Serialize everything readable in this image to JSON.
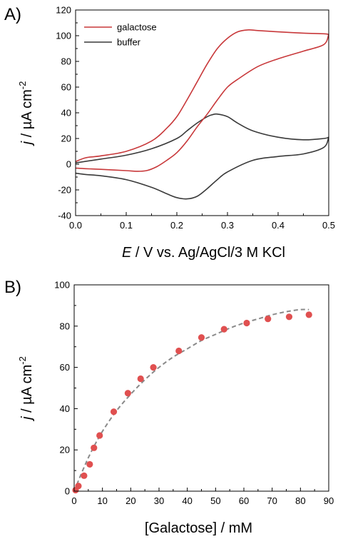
{
  "chart_data": [
    {
      "panel_label": "A)",
      "type": "line",
      "xlabel_italic": "E",
      "xlabel_rest": " / V vs. Ag/AgCl/3 M KCl",
      "ylabel_italic": "j",
      "ylabel_rest": " / µA cm",
      "ylabel_exp": "-2",
      "xlim": [
        0.0,
        0.5
      ],
      "ylim": [
        -40,
        120
      ],
      "xticks": [
        0.0,
        0.1,
        0.2,
        0.3,
        0.4,
        0.5
      ],
      "yticks": [
        -40,
        -20,
        0,
        20,
        40,
        60,
        80,
        100,
        120
      ],
      "legend_position": "top-left",
      "series": [
        {
          "name": "galactose",
          "color": "#c8383a",
          "forward": {
            "x": [
              0.0,
              0.02,
              0.05,
              0.1,
              0.15,
              0.18,
              0.2,
              0.22,
              0.24,
              0.26,
              0.28,
              0.3,
              0.32,
              0.34,
              0.36,
              0.4,
              0.45,
              0.49,
              0.5
            ],
            "y": [
              2,
              5,
              6.5,
              10,
              18,
              28,
              37,
              50,
              64,
              78,
              90,
              98,
              103,
              104.5,
              104,
              103,
              102,
              101.5,
              101
            ]
          },
          "reverse": {
            "x": [
              0.5,
              0.49,
              0.45,
              0.4,
              0.36,
              0.32,
              0.3,
              0.28,
              0.26,
              0.24,
              0.22,
              0.2,
              0.18,
              0.16,
              0.14,
              0.12,
              0.1,
              0.05,
              0.02,
              0.0
            ],
            "y": [
              101,
              93,
              88,
              82,
              76,
              66,
              60,
              50,
              39,
              29,
              18,
              9,
              3,
              -2,
              -5,
              -5.5,
              -5,
              -4,
              -3.5,
              -3
            ]
          }
        },
        {
          "name": "buffer",
          "color": "#3a3a3a",
          "forward": {
            "x": [
              0.0,
              0.05,
              0.1,
              0.15,
              0.2,
              0.22,
              0.24,
              0.26,
              0.27,
              0.28,
              0.3,
              0.32,
              0.35,
              0.4,
              0.45,
              0.49,
              0.5
            ],
            "y": [
              1,
              4,
              7,
              12,
              20,
              26,
              32,
              37,
              38.5,
              39,
              37,
              32,
              26,
              21,
              19,
              20,
              21
            ]
          },
          "reverse": {
            "x": [
              0.5,
              0.49,
              0.45,
              0.4,
              0.35,
              0.3,
              0.28,
              0.26,
              0.24,
              0.22,
              0.2,
              0.18,
              0.15,
              0.1,
              0.05,
              0.02,
              0.0
            ],
            "y": [
              21,
              13,
              8,
              6,
              3,
              -6,
              -12,
              -19,
              -25,
              -27,
              -26,
              -23,
              -18,
              -12,
              -9,
              -8,
              -7
            ]
          }
        }
      ]
    },
    {
      "panel_label": "B)",
      "type": "scatter",
      "xlabel": "[Galactose] / mM",
      "ylabel_italic": "j",
      "ylabel_rest": " / µA cm",
      "ylabel_exp": "-2",
      "xlim": [
        0,
        90
      ],
      "ylim": [
        0,
        100
      ],
      "xticks": [
        0,
        10,
        20,
        30,
        40,
        50,
        60,
        70,
        80,
        90
      ],
      "yticks": [
        0,
        20,
        40,
        60,
        80,
        100
      ],
      "point_color": "#e05050",
      "fit_color": "#8a8a8a",
      "points": {
        "x": [
          0.5,
          1.5,
          3.5,
          5.5,
          7,
          9,
          14,
          19,
          23.5,
          28,
          37,
          45,
          53,
          61,
          68.5,
          76,
          83
        ],
        "y": [
          0.5,
          2.5,
          7.5,
          13,
          21,
          27,
          38.5,
          47.5,
          54.5,
          60,
          68,
          74.5,
          78.5,
          81.5,
          83.5,
          84.5,
          85.5
        ]
      },
      "fit": {
        "x": [
          0,
          3,
          6,
          10,
          15,
          20,
          25,
          30,
          35,
          40,
          45,
          50,
          55,
          60,
          65,
          70,
          75,
          80,
          83
        ],
        "y": [
          0,
          10,
          19,
          29,
          39,
          47,
          54,
          60,
          65,
          69,
          73,
          76,
          79,
          81.5,
          83.5,
          85.5,
          87,
          88,
          88
        ]
      }
    }
  ]
}
